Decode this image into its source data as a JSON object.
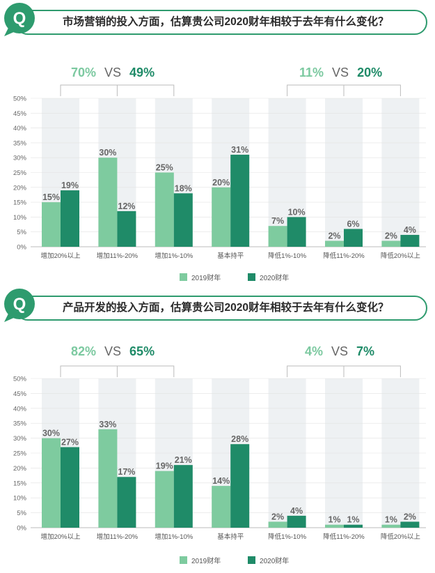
{
  "colors": {
    "series_2019": "#7ecb9f",
    "series_2020": "#1f8b68",
    "accent": "#2e9b6e",
    "bg_stripe": "#eef1f3"
  },
  "icons": {
    "question": "q-speech-bubble-icon"
  },
  "chart_data": [
    {
      "type": "bar",
      "question": "市场营销的投入方面，估算贵公司2020财年相较于去年有什么变化？",
      "categories": [
        "增加20%以上",
        "增加11%-20%",
        "增加1%-10%",
        "基本持平",
        "降低1%-10%",
        "降低11%-20%",
        "降低20%以上"
      ],
      "series": [
        {
          "name": "2019财年",
          "values": [
            15,
            30,
            25,
            20,
            7,
            2,
            2
          ]
        },
        {
          "name": "2020财年",
          "values": [
            19,
            12,
            18,
            31,
            10,
            6,
            4
          ]
        }
      ],
      "value_labels": [
        [
          "15%",
          "30%",
          "25%",
          "20%",
          "7%",
          "2%",
          "2%"
        ],
        [
          "19%",
          "12%",
          "18%",
          "31%",
          "10%",
          "6%",
          "4%"
        ]
      ],
      "yticks": [
        "0%",
        "5%",
        "10%",
        "15%",
        "20%",
        "25%",
        "30%",
        "35%",
        "40%",
        "45%",
        "50%"
      ],
      "ylim": [
        0,
        50
      ],
      "comparisons": [
        {
          "a": "70%",
          "vs": "VS",
          "b": "49%"
        },
        {
          "a": "11%",
          "vs": "VS",
          "b": "20%"
        }
      ],
      "legend": [
        "2019财年",
        "2020财年"
      ]
    },
    {
      "type": "bar",
      "question": "产品开发的投入方面，估算贵公司2020财年相较于去年有什么变化？",
      "categories": [
        "增加20%以上",
        "增加11%-20%",
        "增加1%-10%",
        "基本持平",
        "降低1%-10%",
        "降低11%-20%",
        "降低20%以上"
      ],
      "series": [
        {
          "name": "2019财年",
          "values": [
            30,
            33,
            19,
            14,
            2,
            1,
            1
          ]
        },
        {
          "name": "2020财年",
          "values": [
            27,
            17,
            21,
            28,
            4,
            1,
            2
          ]
        }
      ],
      "value_labels": [
        [
          "30%",
          "33%",
          "19%",
          "14%",
          "2%",
          "1%",
          "1%"
        ],
        [
          "27%",
          "17%",
          "21%",
          "28%",
          "4%",
          "1%",
          "2%"
        ]
      ],
      "yticks": [
        "0%",
        "5%",
        "10%",
        "15%",
        "20%",
        "25%",
        "30%",
        "35%",
        "40%",
        "45%",
        "50%"
      ],
      "ylim": [
        0,
        50
      ],
      "comparisons": [
        {
          "a": "82%",
          "vs": "VS",
          "b": "65%"
        },
        {
          "a": "4%",
          "vs": "VS",
          "b": "7%"
        }
      ],
      "legend": [
        "2019财年",
        "2020财年"
      ]
    }
  ]
}
